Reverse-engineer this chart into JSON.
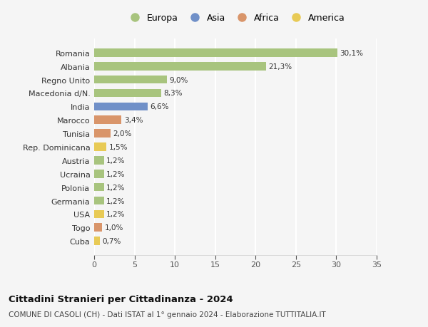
{
  "countries": [
    "Romania",
    "Albania",
    "Regno Unito",
    "Macedonia d/N.",
    "India",
    "Marocco",
    "Tunisia",
    "Rep. Dominicana",
    "Austria",
    "Ucraina",
    "Polonia",
    "Germania",
    "USA",
    "Togo",
    "Cuba"
  ],
  "values": [
    30.1,
    21.3,
    9.0,
    8.3,
    6.6,
    3.4,
    2.0,
    1.5,
    1.2,
    1.2,
    1.2,
    1.2,
    1.2,
    1.0,
    0.7
  ],
  "labels": [
    "30,1%",
    "21,3%",
    "9,0%",
    "8,3%",
    "6,6%",
    "3,4%",
    "2,0%",
    "1,5%",
    "1,2%",
    "1,2%",
    "1,2%",
    "1,2%",
    "1,2%",
    "1,0%",
    "0,7%"
  ],
  "continents": [
    "Europa",
    "Europa",
    "Europa",
    "Europa",
    "Asia",
    "Africa",
    "Africa",
    "America",
    "Europa",
    "Europa",
    "Europa",
    "Europa",
    "America",
    "Africa",
    "America"
  ],
  "colors": {
    "Europa": "#a8c47e",
    "Asia": "#7090c8",
    "Africa": "#d9956a",
    "America": "#e8ca55"
  },
  "legend_order": [
    "Europa",
    "Asia",
    "Africa",
    "America"
  ],
  "xlim": [
    0,
    35
  ],
  "xticks": [
    0,
    5,
    10,
    15,
    20,
    25,
    30,
    35
  ],
  "title": "Cittadini Stranieri per Cittadinanza - 2024",
  "subtitle": "COMUNE DI CASOLI (CH) - Dati ISTAT al 1° gennaio 2024 - Elaborazione TUTTITALIA.IT",
  "bg_color": "#f5f5f5",
  "grid_color": "#ffffff"
}
